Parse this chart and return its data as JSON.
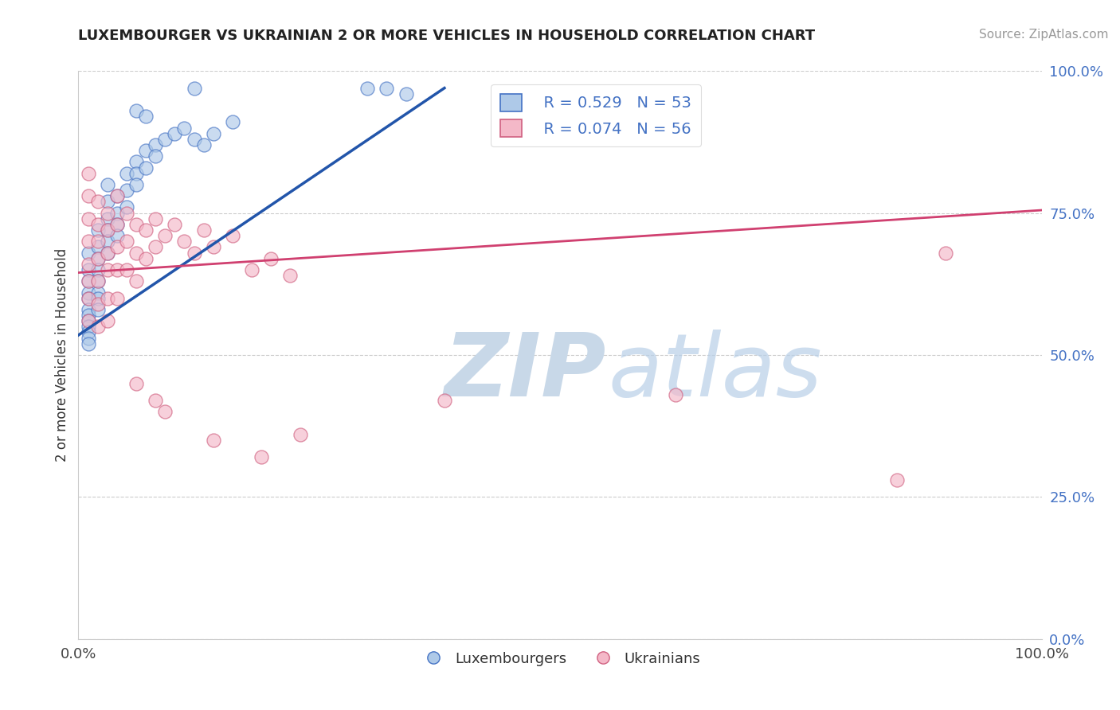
{
  "title": "LUXEMBOURGER VS UKRAINIAN 2 OR MORE VEHICLES IN HOUSEHOLD CORRELATION CHART",
  "source": "Source: ZipAtlas.com",
  "ylabel": "2 or more Vehicles in Household",
  "xlim": [
    0.0,
    1.0
  ],
  "ylim": [
    0.0,
    1.0
  ],
  "ytick_values": [
    0.0,
    0.25,
    0.5,
    0.75,
    1.0
  ],
  "ytick_labels": [
    "0.0%",
    "25.0%",
    "50.0%",
    "75.0%",
    "100.0%"
  ],
  "xtick_values": [
    0.0,
    1.0
  ],
  "xtick_labels": [
    "0.0%",
    "100.0%"
  ],
  "blue_R": "R = 0.529",
  "blue_N": "N = 53",
  "pink_R": "R = 0.074",
  "pink_N": "N = 56",
  "blue_fill": "#aec9e8",
  "blue_edge": "#4472c4",
  "pink_fill": "#f4b8c8",
  "pink_edge": "#d06080",
  "blue_line": "#2255aa",
  "pink_line": "#d04070",
  "legend_label_blue": "Luxembourgers",
  "legend_label_pink": "Ukrainians",
  "blue_points": [
    [
      0.01,
      0.68
    ],
    [
      0.01,
      0.65
    ],
    [
      0.01,
      0.63
    ],
    [
      0.01,
      0.61
    ],
    [
      0.01,
      0.6
    ],
    [
      0.01,
      0.58
    ],
    [
      0.01,
      0.57
    ],
    [
      0.01,
      0.56
    ],
    [
      0.01,
      0.55
    ],
    [
      0.01,
      0.54
    ],
    [
      0.01,
      0.53
    ],
    [
      0.01,
      0.52
    ],
    [
      0.02,
      0.72
    ],
    [
      0.02,
      0.69
    ],
    [
      0.02,
      0.67
    ],
    [
      0.02,
      0.65
    ],
    [
      0.02,
      0.63
    ],
    [
      0.02,
      0.61
    ],
    [
      0.02,
      0.6
    ],
    [
      0.02,
      0.58
    ],
    [
      0.03,
      0.8
    ],
    [
      0.03,
      0.77
    ],
    [
      0.03,
      0.74
    ],
    [
      0.03,
      0.72
    ],
    [
      0.03,
      0.7
    ],
    [
      0.03,
      0.68
    ],
    [
      0.04,
      0.78
    ],
    [
      0.04,
      0.75
    ],
    [
      0.04,
      0.73
    ],
    [
      0.04,
      0.71
    ],
    [
      0.05,
      0.82
    ],
    [
      0.05,
      0.79
    ],
    [
      0.05,
      0.76
    ],
    [
      0.06,
      0.84
    ],
    [
      0.06,
      0.82
    ],
    [
      0.06,
      0.8
    ],
    [
      0.07,
      0.86
    ],
    [
      0.07,
      0.83
    ],
    [
      0.08,
      0.87
    ],
    [
      0.08,
      0.85
    ],
    [
      0.09,
      0.88
    ],
    [
      0.1,
      0.89
    ],
    [
      0.11,
      0.9
    ],
    [
      0.12,
      0.88
    ],
    [
      0.13,
      0.87
    ],
    [
      0.14,
      0.89
    ],
    [
      0.16,
      0.91
    ],
    [
      0.12,
      0.97
    ],
    [
      0.3,
      0.97
    ],
    [
      0.32,
      0.97
    ],
    [
      0.06,
      0.93
    ],
    [
      0.07,
      0.92
    ],
    [
      0.34,
      0.96
    ]
  ],
  "pink_points": [
    [
      0.01,
      0.82
    ],
    [
      0.01,
      0.78
    ],
    [
      0.01,
      0.74
    ],
    [
      0.01,
      0.7
    ],
    [
      0.01,
      0.66
    ],
    [
      0.01,
      0.63
    ],
    [
      0.01,
      0.6
    ],
    [
      0.01,
      0.56
    ],
    [
      0.02,
      0.77
    ],
    [
      0.02,
      0.73
    ],
    [
      0.02,
      0.7
    ],
    [
      0.02,
      0.67
    ],
    [
      0.02,
      0.63
    ],
    [
      0.02,
      0.59
    ],
    [
      0.02,
      0.55
    ],
    [
      0.03,
      0.75
    ],
    [
      0.03,
      0.72
    ],
    [
      0.03,
      0.68
    ],
    [
      0.03,
      0.65
    ],
    [
      0.03,
      0.6
    ],
    [
      0.03,
      0.56
    ],
    [
      0.04,
      0.78
    ],
    [
      0.04,
      0.73
    ],
    [
      0.04,
      0.69
    ],
    [
      0.04,
      0.65
    ],
    [
      0.04,
      0.6
    ],
    [
      0.05,
      0.75
    ],
    [
      0.05,
      0.7
    ],
    [
      0.05,
      0.65
    ],
    [
      0.06,
      0.73
    ],
    [
      0.06,
      0.68
    ],
    [
      0.06,
      0.63
    ],
    [
      0.07,
      0.72
    ],
    [
      0.07,
      0.67
    ],
    [
      0.08,
      0.74
    ],
    [
      0.08,
      0.69
    ],
    [
      0.09,
      0.71
    ],
    [
      0.1,
      0.73
    ],
    [
      0.11,
      0.7
    ],
    [
      0.12,
      0.68
    ],
    [
      0.13,
      0.72
    ],
    [
      0.14,
      0.69
    ],
    [
      0.16,
      0.71
    ],
    [
      0.18,
      0.65
    ],
    [
      0.2,
      0.67
    ],
    [
      0.22,
      0.64
    ],
    [
      0.06,
      0.45
    ],
    [
      0.08,
      0.42
    ],
    [
      0.09,
      0.4
    ],
    [
      0.14,
      0.35
    ],
    [
      0.19,
      0.32
    ],
    [
      0.23,
      0.36
    ],
    [
      0.38,
      0.42
    ],
    [
      0.62,
      0.43
    ],
    [
      0.85,
      0.28
    ],
    [
      0.9,
      0.68
    ]
  ],
  "blue_trend_x": [
    0.0,
    0.38
  ],
  "blue_trend_y": [
    0.535,
    0.97
  ],
  "pink_trend_x": [
    0.0,
    1.0
  ],
  "pink_trend_y": [
    0.645,
    0.755
  ]
}
